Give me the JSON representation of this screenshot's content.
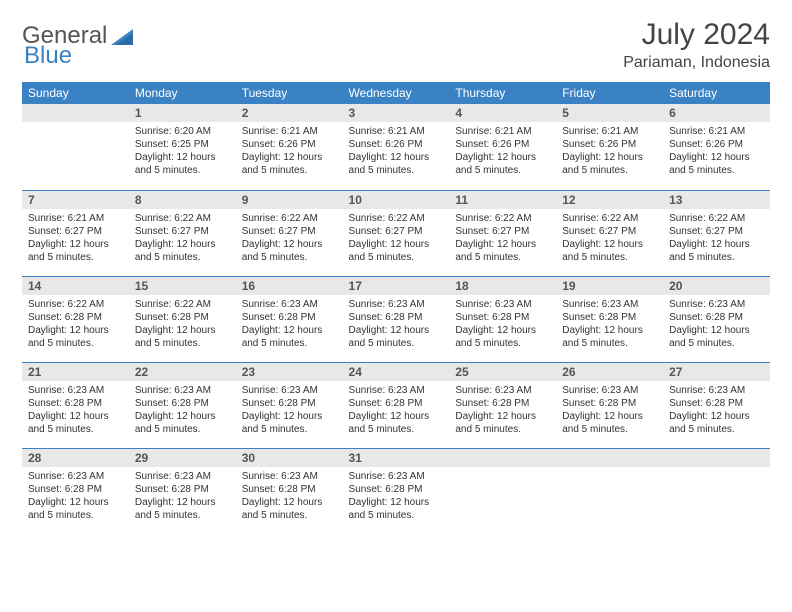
{
  "brand": {
    "part1": "General",
    "part2": "Blue"
  },
  "title": "July 2024",
  "subtitle": "Pariaman, Indonesia",
  "colors": {
    "header_bg": "#3b82c4",
    "header_text": "#ffffff",
    "daynum_bg": "#e8e8e8",
    "daynum_text": "#555555",
    "row_border": "#3b82c4",
    "body_text": "#333333",
    "page_bg": "#ffffff"
  },
  "typography": {
    "title_fontsize": 30,
    "subtitle_fontsize": 16,
    "weekday_fontsize": 12,
    "daynum_fontsize": 12,
    "cell_fontsize": 10
  },
  "weekdays": [
    "Sunday",
    "Monday",
    "Tuesday",
    "Wednesday",
    "Thursday",
    "Friday",
    "Saturday"
  ],
  "weeks": [
    [
      {
        "n": "",
        "sr": "",
        "ss": "",
        "dl": ""
      },
      {
        "n": "1",
        "sr": "Sunrise: 6:20 AM",
        "ss": "Sunset: 6:25 PM",
        "dl": "Daylight: 12 hours and 5 minutes."
      },
      {
        "n": "2",
        "sr": "Sunrise: 6:21 AM",
        "ss": "Sunset: 6:26 PM",
        "dl": "Daylight: 12 hours and 5 minutes."
      },
      {
        "n": "3",
        "sr": "Sunrise: 6:21 AM",
        "ss": "Sunset: 6:26 PM",
        "dl": "Daylight: 12 hours and 5 minutes."
      },
      {
        "n": "4",
        "sr": "Sunrise: 6:21 AM",
        "ss": "Sunset: 6:26 PM",
        "dl": "Daylight: 12 hours and 5 minutes."
      },
      {
        "n": "5",
        "sr": "Sunrise: 6:21 AM",
        "ss": "Sunset: 6:26 PM",
        "dl": "Daylight: 12 hours and 5 minutes."
      },
      {
        "n": "6",
        "sr": "Sunrise: 6:21 AM",
        "ss": "Sunset: 6:26 PM",
        "dl": "Daylight: 12 hours and 5 minutes."
      }
    ],
    [
      {
        "n": "7",
        "sr": "Sunrise: 6:21 AM",
        "ss": "Sunset: 6:27 PM",
        "dl": "Daylight: 12 hours and 5 minutes."
      },
      {
        "n": "8",
        "sr": "Sunrise: 6:22 AM",
        "ss": "Sunset: 6:27 PM",
        "dl": "Daylight: 12 hours and 5 minutes."
      },
      {
        "n": "9",
        "sr": "Sunrise: 6:22 AM",
        "ss": "Sunset: 6:27 PM",
        "dl": "Daylight: 12 hours and 5 minutes."
      },
      {
        "n": "10",
        "sr": "Sunrise: 6:22 AM",
        "ss": "Sunset: 6:27 PM",
        "dl": "Daylight: 12 hours and 5 minutes."
      },
      {
        "n": "11",
        "sr": "Sunrise: 6:22 AM",
        "ss": "Sunset: 6:27 PM",
        "dl": "Daylight: 12 hours and 5 minutes."
      },
      {
        "n": "12",
        "sr": "Sunrise: 6:22 AM",
        "ss": "Sunset: 6:27 PM",
        "dl": "Daylight: 12 hours and 5 minutes."
      },
      {
        "n": "13",
        "sr": "Sunrise: 6:22 AM",
        "ss": "Sunset: 6:27 PM",
        "dl": "Daylight: 12 hours and 5 minutes."
      }
    ],
    [
      {
        "n": "14",
        "sr": "Sunrise: 6:22 AM",
        "ss": "Sunset: 6:28 PM",
        "dl": "Daylight: 12 hours and 5 minutes."
      },
      {
        "n": "15",
        "sr": "Sunrise: 6:22 AM",
        "ss": "Sunset: 6:28 PM",
        "dl": "Daylight: 12 hours and 5 minutes."
      },
      {
        "n": "16",
        "sr": "Sunrise: 6:23 AM",
        "ss": "Sunset: 6:28 PM",
        "dl": "Daylight: 12 hours and 5 minutes."
      },
      {
        "n": "17",
        "sr": "Sunrise: 6:23 AM",
        "ss": "Sunset: 6:28 PM",
        "dl": "Daylight: 12 hours and 5 minutes."
      },
      {
        "n": "18",
        "sr": "Sunrise: 6:23 AM",
        "ss": "Sunset: 6:28 PM",
        "dl": "Daylight: 12 hours and 5 minutes."
      },
      {
        "n": "19",
        "sr": "Sunrise: 6:23 AM",
        "ss": "Sunset: 6:28 PM",
        "dl": "Daylight: 12 hours and 5 minutes."
      },
      {
        "n": "20",
        "sr": "Sunrise: 6:23 AM",
        "ss": "Sunset: 6:28 PM",
        "dl": "Daylight: 12 hours and 5 minutes."
      }
    ],
    [
      {
        "n": "21",
        "sr": "Sunrise: 6:23 AM",
        "ss": "Sunset: 6:28 PM",
        "dl": "Daylight: 12 hours and 5 minutes."
      },
      {
        "n": "22",
        "sr": "Sunrise: 6:23 AM",
        "ss": "Sunset: 6:28 PM",
        "dl": "Daylight: 12 hours and 5 minutes."
      },
      {
        "n": "23",
        "sr": "Sunrise: 6:23 AM",
        "ss": "Sunset: 6:28 PM",
        "dl": "Daylight: 12 hours and 5 minutes."
      },
      {
        "n": "24",
        "sr": "Sunrise: 6:23 AM",
        "ss": "Sunset: 6:28 PM",
        "dl": "Daylight: 12 hours and 5 minutes."
      },
      {
        "n": "25",
        "sr": "Sunrise: 6:23 AM",
        "ss": "Sunset: 6:28 PM",
        "dl": "Daylight: 12 hours and 5 minutes."
      },
      {
        "n": "26",
        "sr": "Sunrise: 6:23 AM",
        "ss": "Sunset: 6:28 PM",
        "dl": "Daylight: 12 hours and 5 minutes."
      },
      {
        "n": "27",
        "sr": "Sunrise: 6:23 AM",
        "ss": "Sunset: 6:28 PM",
        "dl": "Daylight: 12 hours and 5 minutes."
      }
    ],
    [
      {
        "n": "28",
        "sr": "Sunrise: 6:23 AM",
        "ss": "Sunset: 6:28 PM",
        "dl": "Daylight: 12 hours and 5 minutes."
      },
      {
        "n": "29",
        "sr": "Sunrise: 6:23 AM",
        "ss": "Sunset: 6:28 PM",
        "dl": "Daylight: 12 hours and 5 minutes."
      },
      {
        "n": "30",
        "sr": "Sunrise: 6:23 AM",
        "ss": "Sunset: 6:28 PM",
        "dl": "Daylight: 12 hours and 5 minutes."
      },
      {
        "n": "31",
        "sr": "Sunrise: 6:23 AM",
        "ss": "Sunset: 6:28 PM",
        "dl": "Daylight: 12 hours and 5 minutes."
      },
      {
        "n": "",
        "sr": "",
        "ss": "",
        "dl": ""
      },
      {
        "n": "",
        "sr": "",
        "ss": "",
        "dl": ""
      },
      {
        "n": "",
        "sr": "",
        "ss": "",
        "dl": ""
      }
    ]
  ]
}
